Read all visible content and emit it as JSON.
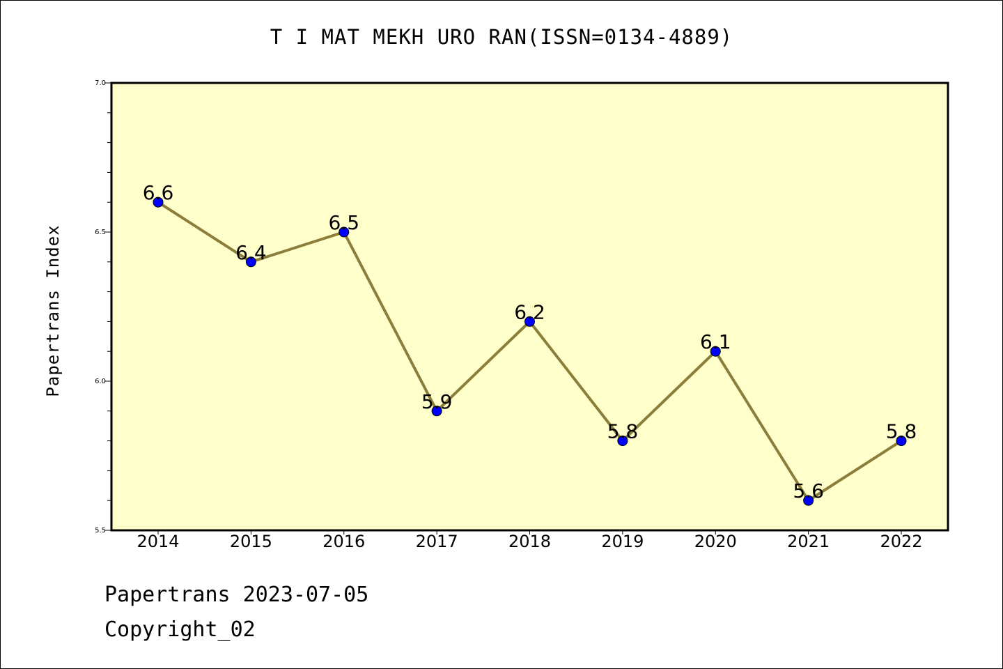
{
  "footer": {
    "line1": "Papertrans 2023-07-05",
    "line2": "Copyright_02"
  },
  "colors": {
    "plot_background": "#ffffcc",
    "line": "#8b7d3a",
    "marker": "#0000ff"
  },
  "chart_data": {
    "type": "line",
    "title": "T I MAT MEKH URO RAN(ISSN=0134-4889)",
    "xlabel": "",
    "ylabel": "Papertrans Index",
    "categories": [
      "2014",
      "2015",
      "2016",
      "2017",
      "2018",
      "2019",
      "2020",
      "2021",
      "2022"
    ],
    "series": [
      {
        "values": [
          6.6,
          6.4,
          6.5,
          5.9,
          6.2,
          5.8,
          6.1,
          5.6,
          5.8
        ]
      }
    ],
    "ylim": [
      5.5,
      7.0
    ],
    "yticks": [
      "5.5",
      "6.0",
      "6.5",
      "7.0"
    ],
    "grid": false,
    "legend": "none"
  }
}
